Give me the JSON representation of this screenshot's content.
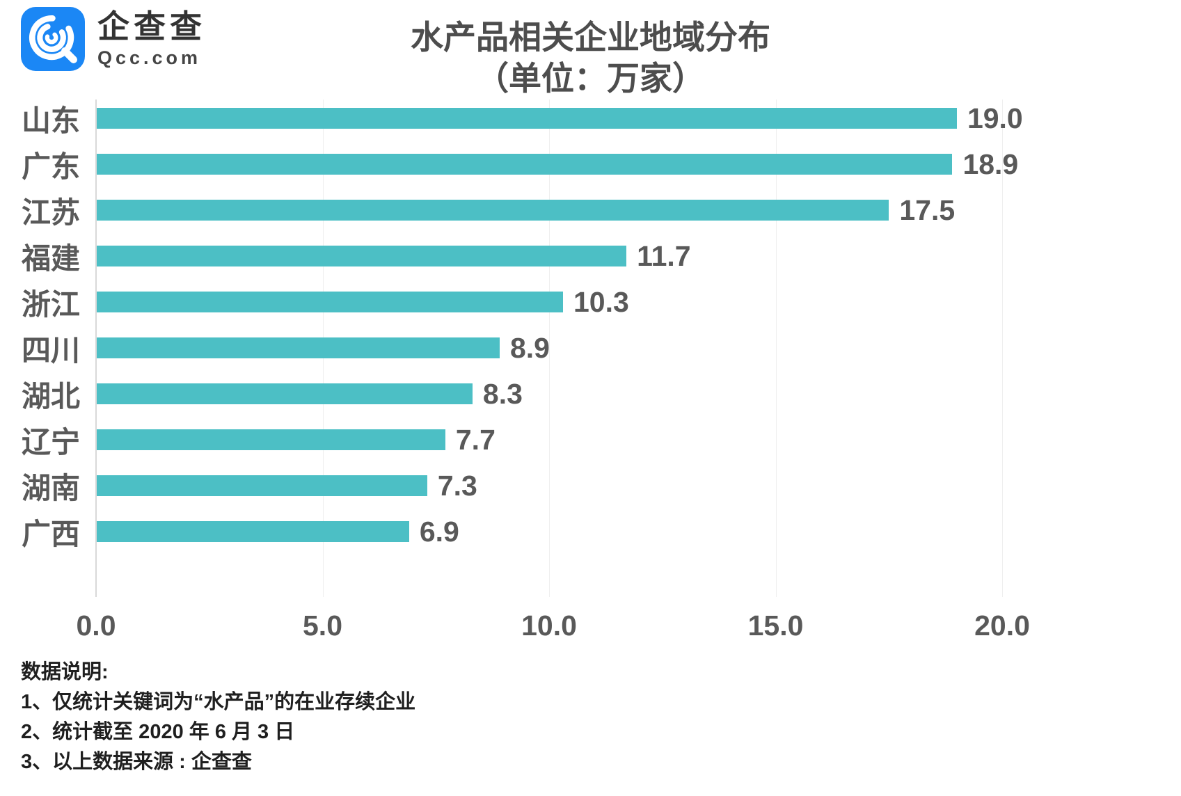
{
  "logo": {
    "name_cn": "企查查",
    "domain": "Qcc.com",
    "brand_blue": "#1b87f5"
  },
  "title": {
    "line1": "水产品相关企业地域分布",
    "line2": "（单位：万家）"
  },
  "chart_data": {
    "type": "bar",
    "orientation": "horizontal",
    "title": "水产品相关企业地域分布（单位：万家）",
    "categories": [
      "山东",
      "广东",
      "江苏",
      "福建",
      "浙江",
      "四川",
      "湖北",
      "辽宁",
      "湖南",
      "广西"
    ],
    "values": [
      19.0,
      18.9,
      17.5,
      11.7,
      10.3,
      8.9,
      8.3,
      7.7,
      7.3,
      6.9
    ],
    "value_labels": [
      "19.0",
      "18.9",
      "17.5",
      "11.7",
      "10.3",
      "8.9",
      "8.3",
      "7.7",
      "7.3",
      "6.9"
    ],
    "x_ticks": [
      "0.0",
      "5.0",
      "10.0",
      "15.0",
      "20.0"
    ],
    "xlim": [
      0,
      20
    ],
    "bar_color": "#4cbfc5",
    "grid": "vertical-light",
    "unit": "万家"
  },
  "notes": {
    "heading": "数据说明:",
    "items": [
      "1、仅统计关键词为“水产品”的在业存续企业",
      "2、统计截至 2020 年 6 月 3 日",
      "3、以上数据来源 : 企查查"
    ]
  }
}
